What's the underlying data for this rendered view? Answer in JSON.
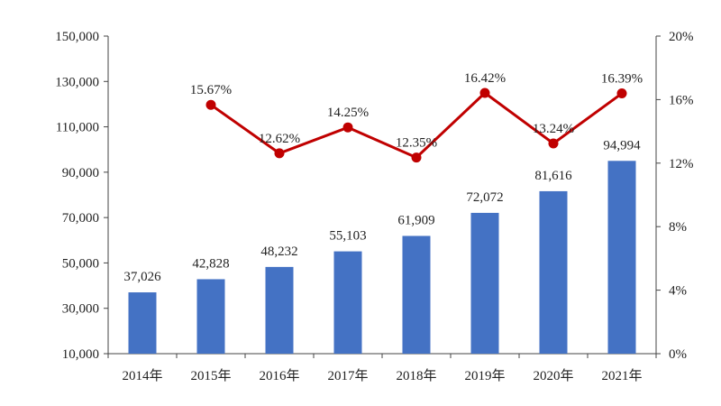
{
  "chart_data": {
    "type": "bar",
    "categories": [
      "2014年",
      "2015年",
      "2016年",
      "2017年",
      "2018年",
      "2019年",
      "2020年",
      "2021年"
    ],
    "series": [
      {
        "type": "bar",
        "axis": "left",
        "values": [
          37026,
          42828,
          48232,
          55103,
          61909,
          72072,
          81616,
          94994
        ],
        "labels": [
          "37,026",
          "42,828",
          "48,232",
          "55,103",
          "61,909",
          "72,072",
          "81,616",
          "94,994"
        ],
        "color": "#4472C4"
      },
      {
        "type": "line",
        "axis": "right",
        "values": [
          null,
          15.67,
          12.62,
          14.25,
          12.35,
          16.42,
          13.24,
          16.39
        ],
        "labels": [
          "",
          "15.67%",
          "12.62%",
          "14.25%",
          "12.35%",
          "16.42%",
          "13.24%",
          "16.39%"
        ],
        "color": "#C00000"
      }
    ],
    "y_left": {
      "ylim": [
        10000,
        150000
      ],
      "ticks": [
        "10,000",
        "30,000",
        "50,000",
        "70,000",
        "90,000",
        "110,000",
        "130,000",
        "150,000"
      ]
    },
    "y_right": {
      "ylim": [
        0,
        20
      ],
      "unit": "%",
      "ticks": [
        "0%",
        "4%",
        "8%",
        "12%",
        "16%",
        "20%"
      ]
    },
    "grid": false,
    "legend": "none"
  }
}
